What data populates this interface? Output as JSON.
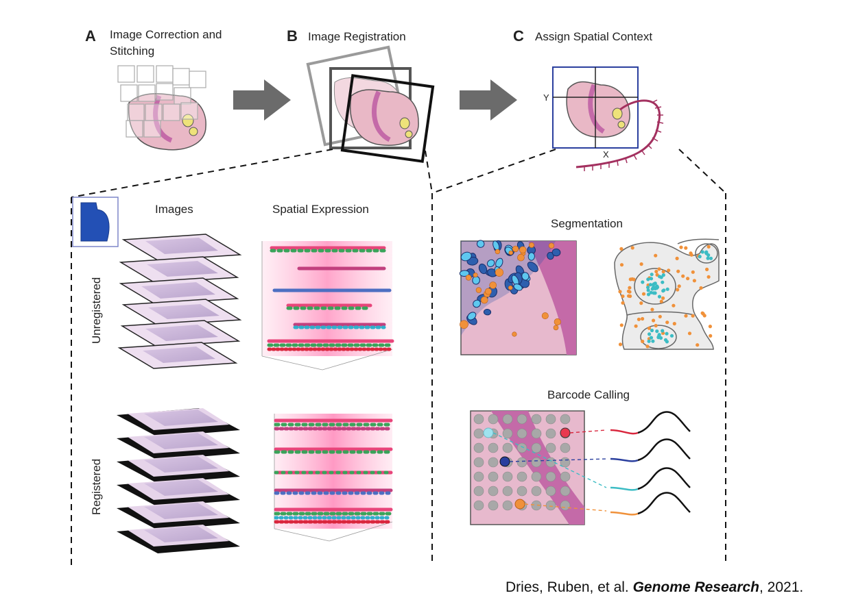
{
  "panels": {
    "a": {
      "letter": "A",
      "title_line1": "Image Correction and",
      "title_line2": "Stitching"
    },
    "b": {
      "letter": "B",
      "title": "Image Registration"
    },
    "c": {
      "letter": "C",
      "title": "Assign Spatial Context",
      "axis_y": "Y",
      "axis_x": "X"
    }
  },
  "left_detail": {
    "col_images": "Images",
    "col_spatial": "Spatial Expression",
    "row_unregistered": "Unregistered",
    "row_registered": "Registered"
  },
  "right_detail": {
    "segmentation": "Segmentation",
    "barcode_calling": "Barcode Calling"
  },
  "citation": {
    "authors": "Dries, Ruben, et al. ",
    "journal": "Genome Research",
    "year": ", 2021."
  },
  "colors": {
    "tissue": "#e9b8c6",
    "tissue_dark": "#c46aa8",
    "accent_blue": "#2a3f9e",
    "cell_light": "#5ec8ef",
    "cell_dark": "#2e5fae",
    "orange": "#f0913a",
    "teal": "#3cbcc4",
    "red": "#d9263d",
    "arrow": "#6b6b6b"
  }
}
